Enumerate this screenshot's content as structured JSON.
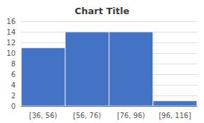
{
  "chart_data": {
    "type": "bar",
    "title": "Chart Title",
    "categories": [
      "[36, 56)",
      "[56, 76)",
      "[76, 96)",
      "[96, 116]"
    ],
    "values": [
      11,
      14,
      14,
      1
    ],
    "color": "#4472C4",
    "ylim": [
      0,
      16
    ],
    "yticks": [
      0,
      2,
      4,
      6,
      8,
      10,
      12,
      14,
      16
    ],
    "grid": true
  }
}
